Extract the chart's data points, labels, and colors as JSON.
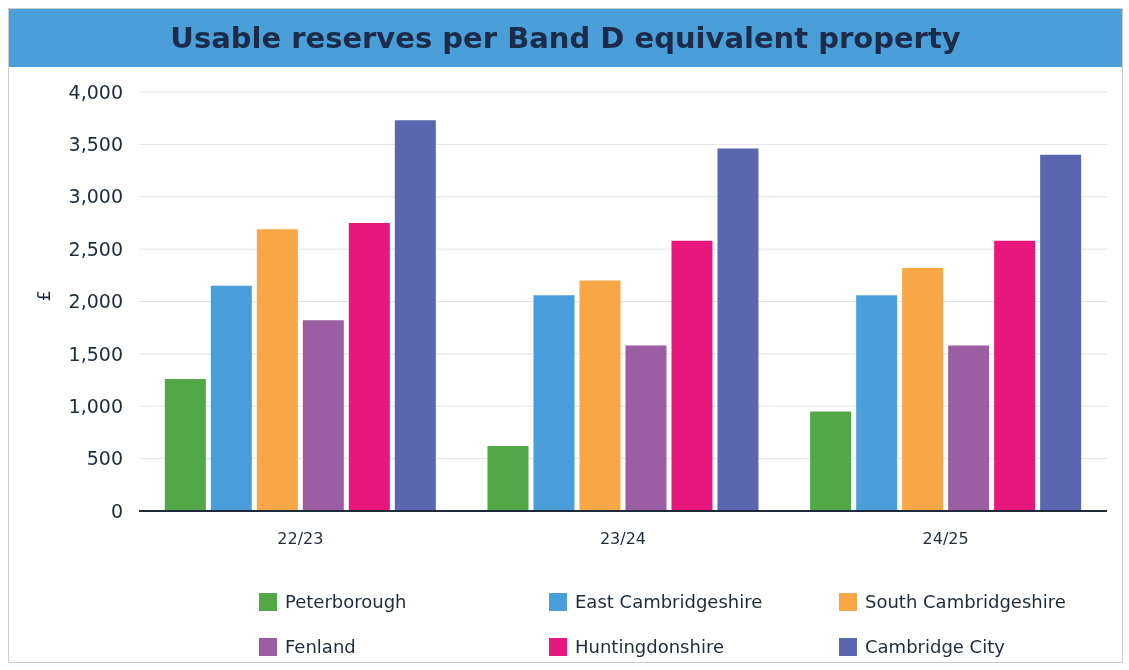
{
  "chart_data": {
    "type": "bar",
    "title": "Usable reserves per Band D equivalent property",
    "ylabel": "£",
    "categories": [
      "22/23",
      "23/24",
      "24/25"
    ],
    "series": [
      {
        "name": "Peterborough",
        "color": "#52a847",
        "values": [
          1260,
          620,
          950
        ]
      },
      {
        "name": "East Cambridgeshire",
        "color": "#4a9fdb",
        "values": [
          2150,
          2060,
          2060
        ]
      },
      {
        "name": "South Cambridgeshire",
        "color": "#f9a646",
        "values": [
          2690,
          2200,
          2320
        ]
      },
      {
        "name": "Fenland",
        "color": "#9b5ea3",
        "values": [
          1820,
          1580,
          1580
        ]
      },
      {
        "name": "Huntingdonshire",
        "color": "#e8177d",
        "values": [
          2750,
          2580,
          2580
        ]
      },
      {
        "name": "Cambridge City",
        "color": "#5b66b0",
        "values": [
          3730,
          3460,
          3400
        ]
      }
    ],
    "ylim": [
      0,
      4000
    ],
    "yticks": [
      0,
      500,
      {
        "value": 1000,
        "label": "1,000"
      },
      {
        "value": 1500,
        "label": "1,500"
      },
      {
        "value": 2000,
        "label": "2,000"
      },
      {
        "value": 2500,
        "label": "2,500"
      },
      {
        "value": 3000,
        "label": "3,000"
      },
      {
        "value": 3500,
        "label": "3,500"
      },
      {
        "value": 4000,
        "label": "4,000"
      }
    ],
    "grid": "y",
    "legend": "bottom"
  }
}
